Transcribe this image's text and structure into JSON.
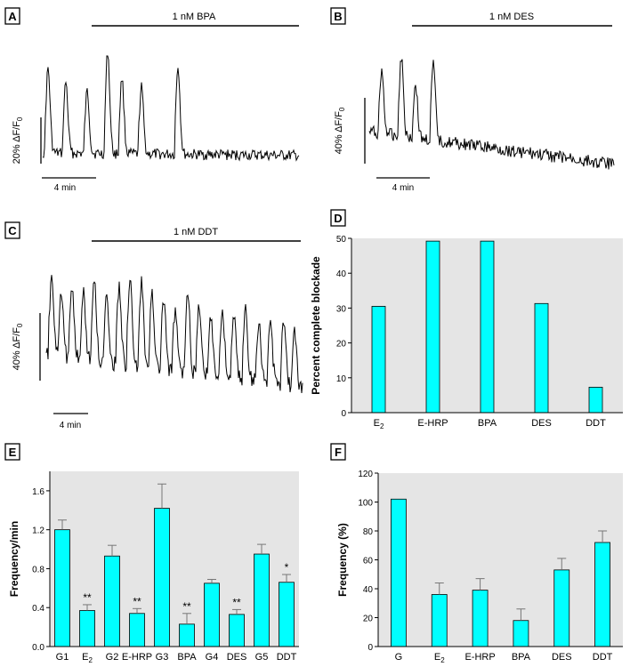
{
  "colors": {
    "bar": "#00ffff",
    "bar_stroke": "#000000",
    "panel_bg": "#e5e5e5",
    "trace": "#000000"
  },
  "panels": {
    "A": {
      "letter": "A",
      "drug_label": "1 nM BPA",
      "ylabel": "20% ΔF/F",
      "ylabel_sub": "0",
      "scale_label": "4 min"
    },
    "B": {
      "letter": "B",
      "drug_label": "1 nM DES",
      "ylabel": "40% ΔF/F",
      "ylabel_sub": "0",
      "scale_label": "4 min"
    },
    "C": {
      "letter": "C",
      "drug_label": "1 nM DDT",
      "ylabel": "40% ΔF/F",
      "ylabel_sub": "0",
      "scale_label": "4 min"
    },
    "D": {
      "letter": "D"
    },
    "E": {
      "letter": "E"
    },
    "F": {
      "letter": "F"
    }
  },
  "chart_data": [
    {
      "panel": "D",
      "type": "bar",
      "categories": [
        "E",
        "E-HRP",
        "BPA",
        "DES",
        "DDT"
      ],
      "category_subscripts": [
        "2",
        "",
        "",
        "",
        ""
      ],
      "values": [
        30.5,
        49.2,
        49.2,
        31.3,
        7.3
      ],
      "ylabel": "Percent complete blockade",
      "xlabel": "",
      "ylim": [
        0,
        50
      ],
      "yticks": [
        "0",
        "10",
        "20",
        "30",
        "40",
        "50"
      ],
      "ytick_values": [
        0,
        10,
        20,
        30,
        40,
        50
      ],
      "grid": false
    },
    {
      "panel": "E",
      "type": "bar",
      "categories": [
        "G1",
        "E",
        "G2",
        "E-HRP",
        "G3",
        "BPA",
        "G4",
        "DES",
        "G5",
        "DDT"
      ],
      "category_subscripts": [
        "",
        "2",
        "",
        "",
        "",
        "",
        "",
        "",
        "",
        ""
      ],
      "values": [
        1.2,
        0.37,
        0.93,
        0.34,
        1.42,
        0.23,
        0.65,
        0.33,
        0.95,
        0.66
      ],
      "errors": [
        0.1,
        0.06,
        0.11,
        0.05,
        0.25,
        0.11,
        0.04,
        0.05,
        0.1,
        0.08
      ],
      "annotations": [
        "",
        "**",
        "",
        "**",
        "",
        "**",
        "",
        "**",
        "",
        "*"
      ],
      "ylabel": "Frequency/min",
      "xlabel": "",
      "ylim": [
        0,
        1.8
      ],
      "yticks": [
        "0.0",
        "0.4",
        "0.8",
        "1.2",
        "1.6"
      ],
      "ytick_values": [
        0,
        0.4,
        0.8,
        1.2,
        1.6
      ],
      "grid": false
    },
    {
      "panel": "F",
      "type": "bar",
      "categories": [
        "G",
        "E",
        "E-HRP",
        "BPA",
        "DES",
        "DDT"
      ],
      "category_subscripts": [
        "",
        "2",
        "",
        "",
        "",
        ""
      ],
      "values": [
        102,
        36,
        39,
        18,
        53,
        72
      ],
      "errors": [
        0,
        8,
        8,
        8,
        8,
        8
      ],
      "ylabel": "Frequency (%)",
      "xlabel": "",
      "ylim": [
        0,
        120
      ],
      "yticks": [
        "0",
        "20",
        "40",
        "60",
        "80",
        "100",
        "120"
      ],
      "ytick_values": [
        0,
        20,
        40,
        60,
        80,
        100,
        120
      ],
      "grid": false
    }
  ]
}
